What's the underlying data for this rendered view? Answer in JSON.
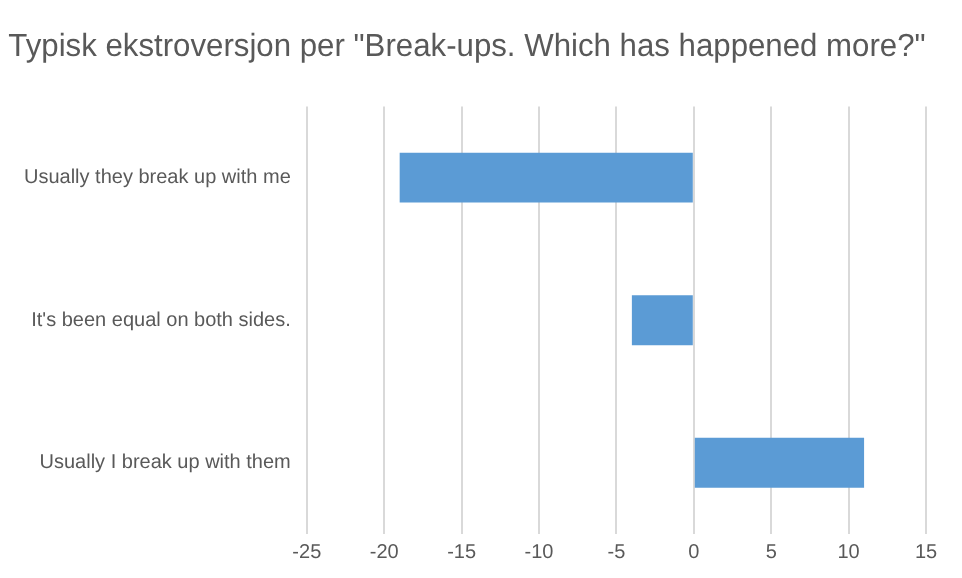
{
  "chart_data": {
    "type": "bar",
    "orientation": "horizontal",
    "title": "Typisk ekstroversjon per \"Break-ups. Which has happened more?\"",
    "categories": [
      "Usually they break up with me",
      "It's been equal on both sides.",
      "Usually I break up with them"
    ],
    "values": [
      -19,
      -4,
      11
    ],
    "color": "#5b9bd5",
    "xlim": [
      -25,
      15
    ],
    "xticks": [
      -25,
      -20,
      -15,
      -10,
      -5,
      0,
      5,
      10,
      15
    ],
    "grid": "x",
    "legend": false
  }
}
